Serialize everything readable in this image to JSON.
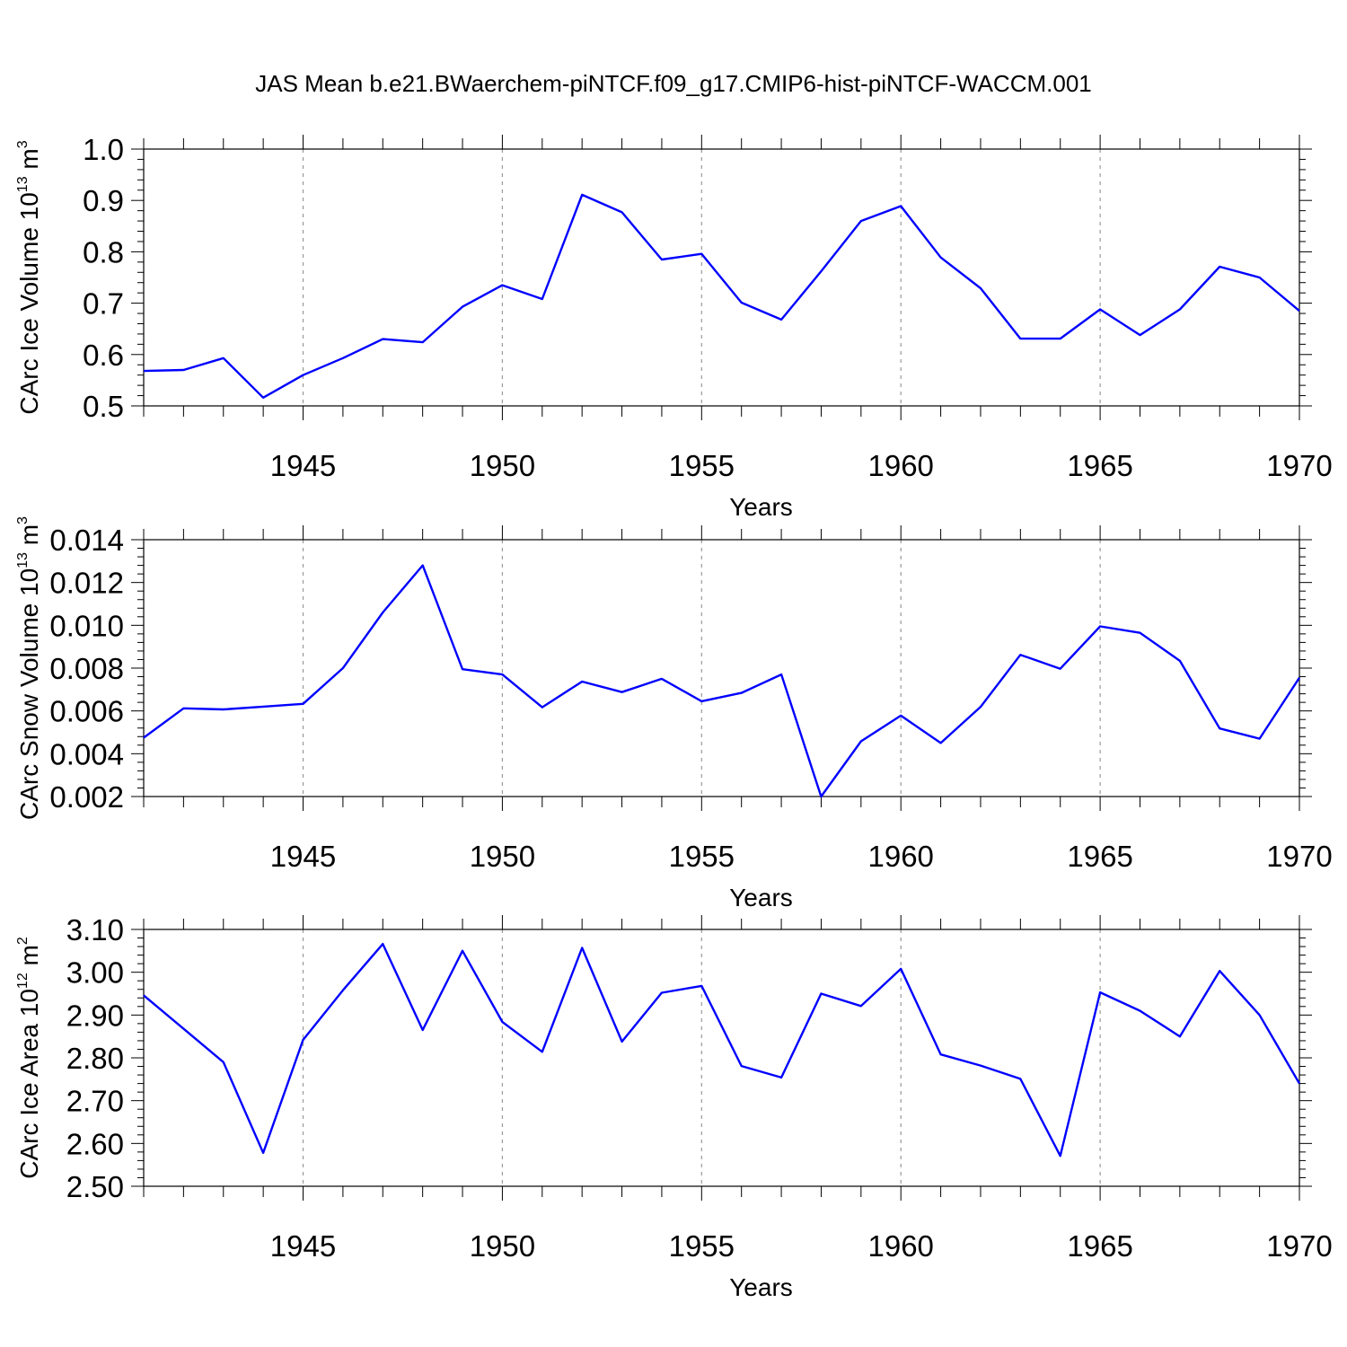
{
  "title": "JAS Mean b.e21.BWaerchem-piNTCF.f09_g17.CMIP6-hist-piNTCF-WACCM.001",
  "line_color": "#0000ff",
  "chart_data": [
    {
      "type": "line",
      "xlabel": "Years",
      "ylabel": {
        "text": "CArc Ice Volume 10",
        "exp": "13",
        "unit": " m",
        "unit_exp": "3"
      },
      "ylim": [
        0.5,
        1.0
      ],
      "xlim": [
        1941,
        1970
      ],
      "y_ticks": [
        "0.5",
        "0.6",
        "0.7",
        "0.8",
        "0.9",
        "1.0"
      ],
      "x_ticks": [
        "1945",
        "1950",
        "1955",
        "1960",
        "1965",
        "1970"
      ],
      "x": [
        1941,
        1942,
        1943,
        1944,
        1945,
        1946,
        1947,
        1948,
        1949,
        1950,
        1951,
        1952,
        1953,
        1954,
        1955,
        1956,
        1957,
        1958,
        1959,
        1960,
        1961,
        1962,
        1963,
        1964,
        1965,
        1966,
        1967,
        1968,
        1969,
        1970
      ],
      "values": [
        0.568,
        0.57,
        0.593,
        0.516,
        0.56,
        0.593,
        0.63,
        0.624,
        0.693,
        0.735,
        0.708,
        0.911,
        0.877,
        0.785,
        0.796,
        0.701,
        0.668,
        0.762,
        0.86,
        0.889,
        0.789,
        0.729,
        0.631,
        0.631,
        0.688,
        0.638,
        0.688,
        0.771,
        0.75,
        0.685
      ]
    },
    {
      "type": "line",
      "xlabel": "Years",
      "ylabel": {
        "text": "CArc Snow Volume 10",
        "exp": "13",
        "unit": " m",
        "unit_exp": "3"
      },
      "ylim": [
        0.002,
        0.014
      ],
      "xlim": [
        1941,
        1970
      ],
      "y_ticks": [
        "0.002",
        "0.004",
        "0.006",
        "0.008",
        "0.010",
        "0.012",
        "0.014"
      ],
      "x_ticks": [
        "1945",
        "1950",
        "1955",
        "1960",
        "1965",
        "1970"
      ],
      "x": [
        1941,
        1942,
        1943,
        1944,
        1945,
        1946,
        1947,
        1948,
        1949,
        1950,
        1951,
        1952,
        1953,
        1954,
        1955,
        1956,
        1957,
        1958,
        1959,
        1960,
        1961,
        1962,
        1963,
        1964,
        1965,
        1966,
        1967,
        1968,
        1969,
        1970
      ],
      "values": [
        0.00475,
        0.00612,
        0.00607,
        0.0062,
        0.00633,
        0.008,
        0.0106,
        0.0128,
        0.00795,
        0.0077,
        0.00617,
        0.00737,
        0.00688,
        0.0075,
        0.00645,
        0.00684,
        0.0077,
        0.002,
        0.00458,
        0.00578,
        0.0045,
        0.00619,
        0.00862,
        0.00797,
        0.00995,
        0.00965,
        0.00834,
        0.00518,
        0.0047,
        0.00755
      ]
    },
    {
      "type": "line",
      "xlabel": "Years",
      "ylabel": {
        "text": "CArc Ice Area 10",
        "exp": "12",
        "unit": " m",
        "unit_exp": "2"
      },
      "ylim": [
        2.5,
        3.1
      ],
      "xlim": [
        1941,
        1970
      ],
      "y_ticks": [
        "2.50",
        "2.60",
        "2.70",
        "2.80",
        "2.90",
        "3.00",
        "3.10"
      ],
      "x_ticks": [
        "1945",
        "1950",
        "1955",
        "1960",
        "1965",
        "1970"
      ],
      "x": [
        1941,
        1942,
        1943,
        1944,
        1945,
        1946,
        1947,
        1948,
        1949,
        1950,
        1951,
        1952,
        1953,
        1954,
        1955,
        1956,
        1957,
        1958,
        1959,
        1960,
        1961,
        1962,
        1963,
        1964,
        1965,
        1966,
        1967,
        1968,
        1969,
        1970
      ],
      "values": [
        2.946,
        2.868,
        2.79,
        2.578,
        2.842,
        2.958,
        3.066,
        2.865,
        3.05,
        2.884,
        2.814,
        3.057,
        2.838,
        2.952,
        2.968,
        2.781,
        2.754,
        2.95,
        2.921,
        3.008,
        2.808,
        2.782,
        2.751,
        2.571,
        2.953,
        2.91,
        2.85,
        3.003,
        2.9,
        2.74
      ]
    }
  ]
}
